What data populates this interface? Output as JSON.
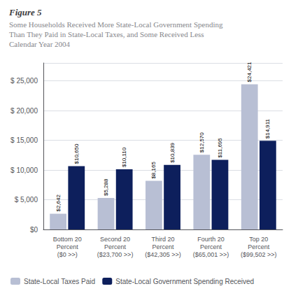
{
  "chart_data": {
    "type": "bar",
    "title": "Figure 5",
    "subtitle": "Some Households Received More State-Local Government Spending\nThan They Paid in State-Local Taxes, and Some Received Less\nCalendar Year 2004",
    "categories": [
      "Bottom 20\nPercent\n($0 >>)",
      "Second 20\nPercent\n($23,700 >>)",
      "Third 20\nPercent\n($42,305 >>)",
      "Fourth 20\nPercent\n($65,001 >>)",
      "Top 20\nPercent\n($99,502 >>)"
    ],
    "series": [
      {
        "name": "State-Local Taxes Paid",
        "color": "#b8bfd4",
        "values": [
          2642,
          5288,
          8165,
          12570,
          24421
        ],
        "value_labels": [
          "$2,642",
          "$5,288",
          "$8,165",
          "$12,570",
          "$24,421"
        ]
      },
      {
        "name": "State-Local Government Spending Received",
        "color": "#0d1f5c",
        "values": [
          10650,
          10110,
          10839,
          11695,
          14911
        ],
        "value_labels": [
          "$10,650",
          "$10,110",
          "$10,839",
          "$11,695",
          "$14,911"
        ]
      }
    ],
    "ylim": [
      0,
      28000
    ],
    "yticks": [
      {
        "value": 0,
        "label": "$0"
      },
      {
        "value": 5000,
        "label": "$ 5,000"
      },
      {
        "value": 10000,
        "label": "$ 10,000"
      },
      {
        "value": 15000,
        "label": "$ 15,000"
      },
      {
        "value": 20000,
        "label": "$ 20,000"
      },
      {
        "value": 25000,
        "label": "$ 25,000"
      }
    ],
    "grid": true,
    "legend": "bottom",
    "data_labels": true
  }
}
